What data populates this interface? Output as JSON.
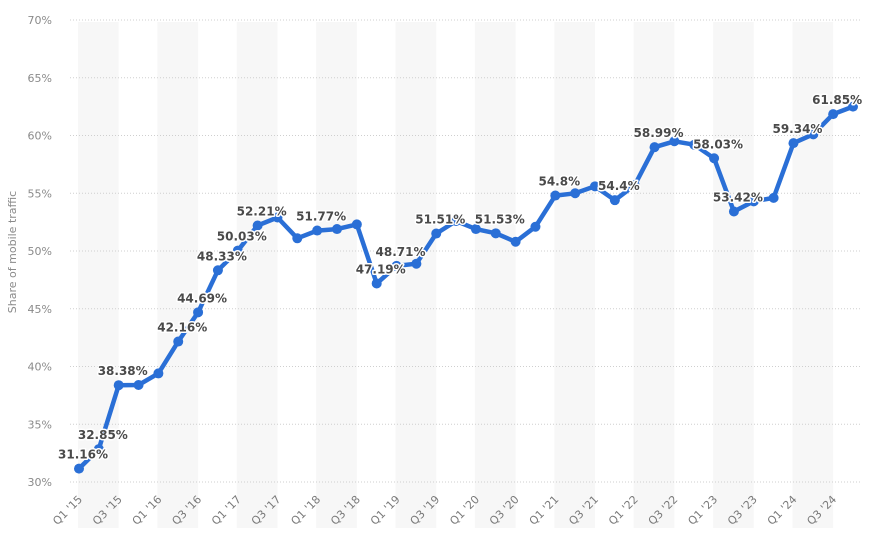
{
  "chart_data": {
    "type": "line",
    "title": "",
    "xlabel": "",
    "ylabel": "Share of mobile traffic",
    "ylim": [
      30,
      70
    ],
    "y_ticks": [
      "30%",
      "35%",
      "40%",
      "45%",
      "50%",
      "55%",
      "60%",
      "65%",
      "70%"
    ],
    "grid": true,
    "legend": null,
    "line_color": "#2a6fd6",
    "categories": [
      "Q1 '15",
      "Q2 '15",
      "Q3 '15",
      "Q4 '15",
      "Q1 '16",
      "Q2 '16",
      "Q3 '16",
      "Q4 '16",
      "Q1 '17",
      "Q2 '17",
      "Q3 '17",
      "Q4 '17",
      "Q1 '18",
      "Q2 '18",
      "Q3 '18",
      "Q4 '18",
      "Q1 '19",
      "Q2 '19",
      "Q3 '19",
      "Q4 '19",
      "Q1 '20",
      "Q2 '20",
      "Q3 '20",
      "Q4 '20",
      "Q1 '21",
      "Q2 '21",
      "Q3 '21",
      "Q4 '21",
      "Q1 '22",
      "Q2 '22",
      "Q3 '22",
      "Q4 '22",
      "Q1 '23",
      "Q2 '23",
      "Q3 '23",
      "Q4 '23",
      "Q1 '24",
      "Q2 '24",
      "Q3 '24",
      "Q4 '24"
    ],
    "x_tick_labels": [
      "Q1 '15",
      "Q3 '15",
      "Q1 '16",
      "Q3 '16",
      "Q1 '17",
      "Q3 '17",
      "Q1 '18",
      "Q3 '18",
      "Q1 '19",
      "Q3 '19",
      "Q1 '20",
      "Q3 '20",
      "Q1 '21",
      "Q3 '21",
      "Q1 '22",
      "Q3 '22",
      "Q1 '23",
      "Q3 '23",
      "Q1 '24",
      "Q3 '24"
    ],
    "series": [
      {
        "name": "Share of mobile traffic",
        "values": [
          31.16,
          32.85,
          38.38,
          38.4,
          39.4,
          42.16,
          44.69,
          48.33,
          50.03,
          52.21,
          52.9,
          51.1,
          51.77,
          51.9,
          52.3,
          47.19,
          48.71,
          48.9,
          51.51,
          52.6,
          51.9,
          51.53,
          50.8,
          52.1,
          54.8,
          55.0,
          55.6,
          54.4,
          55.7,
          58.99,
          59.5,
          59.2,
          58.03,
          53.42,
          54.3,
          54.6,
          59.34,
          60.1,
          61.85,
          62.5
        ]
      }
    ],
    "data_labels": [
      {
        "index": 0,
        "text": "31.16%"
      },
      {
        "index": 1,
        "text": "32.85%"
      },
      {
        "index": 2,
        "text": "38.38%"
      },
      {
        "index": 5,
        "text": "42.16%"
      },
      {
        "index": 6,
        "text": "44.69%"
      },
      {
        "index": 7,
        "text": "48.33%"
      },
      {
        "index": 8,
        "text": "50.03%"
      },
      {
        "index": 9,
        "text": "52.21%"
      },
      {
        "index": 12,
        "text": "51.77%"
      },
      {
        "index": 15,
        "text": "47.19%"
      },
      {
        "index": 16,
        "text": "48.71%"
      },
      {
        "index": 18,
        "text": "51.51%"
      },
      {
        "index": 21,
        "text": "51.53%"
      },
      {
        "index": 24,
        "text": "54.8%"
      },
      {
        "index": 27,
        "text": "54.4%"
      },
      {
        "index": 29,
        "text": "58.99%"
      },
      {
        "index": 32,
        "text": "58.03%"
      },
      {
        "index": 33,
        "text": "53.42%"
      },
      {
        "index": 36,
        "text": "59.34%"
      },
      {
        "index": 38,
        "text": "61.85%"
      }
    ]
  }
}
